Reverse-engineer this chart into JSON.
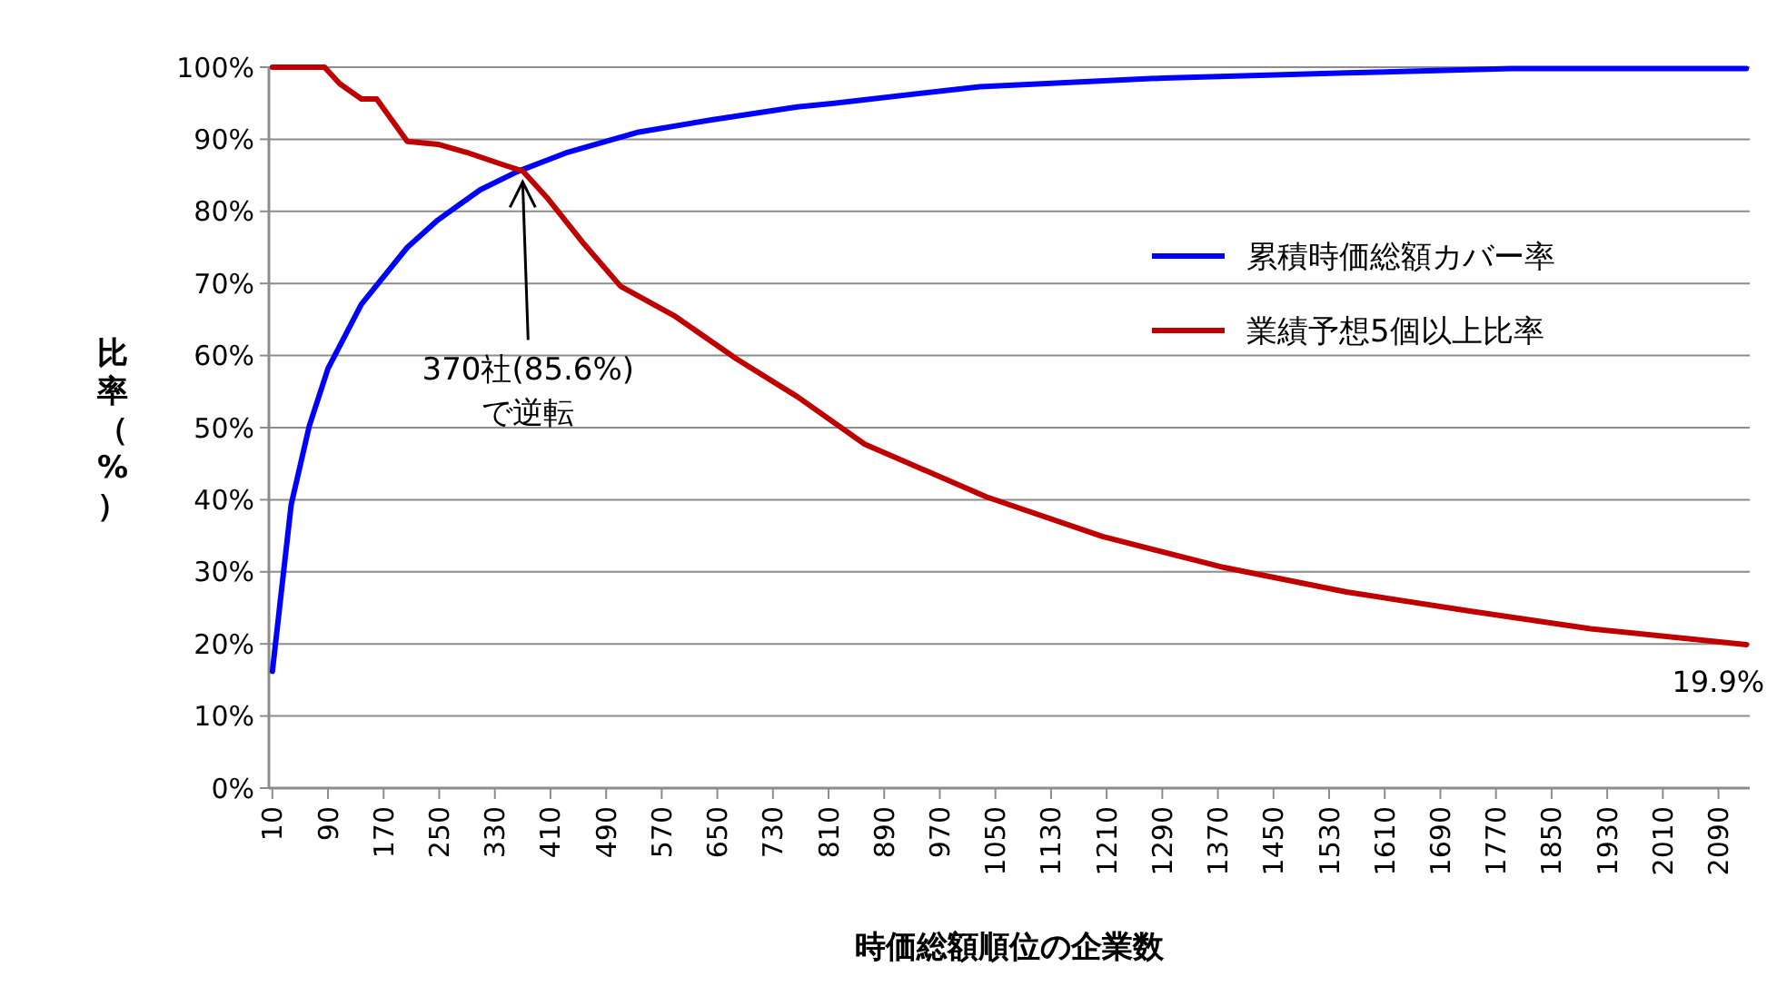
{
  "chart_data": {
    "type": "line",
    "xlabel": "時価総額順位の企業数",
    "ylabel": "比率（%）",
    "xlim": [
      5,
      2135
    ],
    "xticks": [
      10,
      90,
      170,
      250,
      330,
      410,
      490,
      570,
      650,
      730,
      810,
      890,
      970,
      1050,
      1130,
      1210,
      1290,
      1370,
      1450,
      1530,
      1610,
      1690,
      1770,
      1850,
      1930,
      2010,
      2090
    ],
    "ylim": [
      0,
      100
    ],
    "yticks": [
      {
        "value": 0,
        "label": "0%"
      },
      {
        "value": 10,
        "label": "10%"
      },
      {
        "value": 20,
        "label": "20%"
      },
      {
        "value": 30,
        "label": "30%"
      },
      {
        "value": 40,
        "label": "40%"
      },
      {
        "value": 50,
        "label": "50%"
      },
      {
        "value": 60,
        "label": "60%"
      },
      {
        "value": 70,
        "label": "70%"
      },
      {
        "value": 80,
        "label": "80%"
      },
      {
        "value": 90,
        "label": "90%"
      },
      {
        "value": 100,
        "label": "100%"
      }
    ],
    "grid": "y",
    "legend": "right",
    "marker": "none",
    "line_style": "solid",
    "series": [
      {
        "name": "累積時価総額カバー率",
        "color": "#0000ff",
        "x": [
          10,
          37,
          63,
          90,
          138,
          204,
          248,
          309,
          362,
          432,
          537,
          642,
          765,
          818,
          1028,
          1292,
          1555,
          1792,
          2130
        ],
        "values": [
          16.2,
          39.3,
          50.2,
          58.2,
          67.1,
          75.0,
          78.8,
          83.0,
          85.5,
          88.1,
          91.0,
          92.7,
          94.5,
          95.0,
          97.3,
          98.5,
          99.2,
          99.8,
          99.8
        ]
      },
      {
        "name": "業績予想5個以上比率",
        "color": "#c00000",
        "x": [
          10,
          85,
          107,
          138,
          160,
          204,
          248,
          292,
          344,
          370,
          406,
          458,
          511,
          590,
          678,
          765,
          862,
          1037,
          1204,
          1379,
          1555,
          1730,
          1906,
          2130
        ],
        "values": [
          100,
          100,
          97.7,
          95.6,
          95.6,
          89.7,
          89.3,
          88.1,
          86.4,
          85.6,
          81.8,
          75.5,
          69.6,
          65.4,
          59.5,
          54.3,
          47.7,
          40.4,
          34.9,
          30.6,
          27.2,
          24.6,
          22.1,
          19.9
        ]
      }
    ],
    "annotations": [
      {
        "text": "370社(85.6%)\nで逆転",
        "x": 370,
        "y": 85.6
      },
      {
        "text": "19.9%",
        "x": 2130,
        "y": 19.9
      }
    ]
  }
}
